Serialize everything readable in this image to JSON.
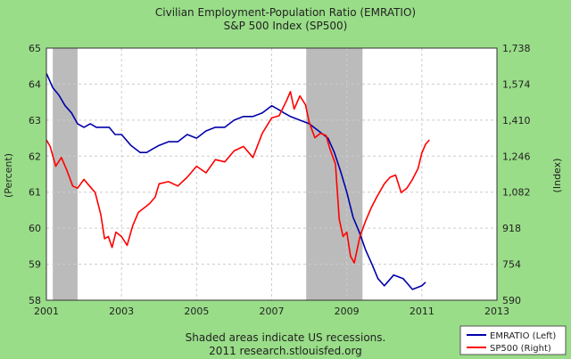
{
  "chart_data": {
    "type": "line",
    "title": "Civilian Employment-Population Ratio (EMRATIO)",
    "subtitle": "S&P 500 Index (SP500)",
    "ylabel_left": "(Percent)",
    "ylabel_right": "(Index)",
    "x_ticks": [
      "2001",
      "2003",
      "2005",
      "2007",
      "2009",
      "2011",
      "2013"
    ],
    "y_left_ticks": [
      "58",
      "59",
      "60",
      "61",
      "62",
      "63",
      "64",
      "65"
    ],
    "y_right_ticks": [
      "590",
      "754",
      "918",
      "1,082",
      "1,246",
      "1,410",
      "1,574",
      "1,738"
    ],
    "xlim": [
      2001.0,
      2013.0
    ],
    "ylim_left": [
      58,
      65
    ],
    "ylim_right": [
      590,
      1738
    ],
    "grid": true,
    "recessions": [
      [
        2001.17,
        2001.83
      ],
      [
        2007.92,
        2009.42
      ]
    ],
    "note_line1": "Shaded areas indicate US recessions.",
    "note_line2": "2011 research.stlouisfed.org",
    "series": [
      {
        "name": "EMRATIO (Left)",
        "axis": "left",
        "color": "#0000aa",
        "x": [
          2001.0,
          2001.17,
          2001.33,
          2001.5,
          2001.67,
          2001.83,
          2002.0,
          2002.17,
          2002.33,
          2002.5,
          2002.67,
          2002.83,
          2003.0,
          2003.25,
          2003.5,
          2003.67,
          2003.83,
          2004.0,
          2004.25,
          2004.5,
          2004.75,
          2005.0,
          2005.25,
          2005.5,
          2005.75,
          2006.0,
          2006.25,
          2006.5,
          2006.75,
          2007.0,
          2007.17,
          2007.33,
          2007.5,
          2007.75,
          2008.0,
          2008.25,
          2008.5,
          2008.67,
          2008.83,
          2009.0,
          2009.17,
          2009.33,
          2009.5,
          2009.67,
          2009.83,
          2010.0,
          2010.25,
          2010.5,
          2010.75,
          2011.0,
          2011.1
        ],
        "values": [
          64.3,
          63.9,
          63.7,
          63.4,
          63.2,
          62.9,
          62.8,
          62.9,
          62.8,
          62.8,
          62.8,
          62.6,
          62.6,
          62.3,
          62.1,
          62.1,
          62.2,
          62.3,
          62.4,
          62.4,
          62.6,
          62.5,
          62.7,
          62.8,
          62.8,
          63.0,
          63.1,
          63.1,
          63.2,
          63.4,
          63.3,
          63.2,
          63.1,
          63.0,
          62.9,
          62.7,
          62.5,
          62.1,
          61.6,
          61.0,
          60.3,
          59.9,
          59.4,
          59.0,
          58.6,
          58.4,
          58.7,
          58.6,
          58.3,
          58.4,
          58.5
        ]
      },
      {
        "name": "SP500 (Right)",
        "axis": "right",
        "color": "#ff0000",
        "x": [
          2001.0,
          2001.1,
          2001.25,
          2001.4,
          2001.55,
          2001.7,
          2001.83,
          2002.0,
          2002.15,
          2002.3,
          2002.45,
          2002.55,
          2002.65,
          2002.75,
          2002.85,
          2003.0,
          2003.15,
          2003.3,
          2003.45,
          2003.6,
          2003.75,
          2003.9,
          2004.0,
          2004.25,
          2004.5,
          2004.75,
          2005.0,
          2005.25,
          2005.5,
          2005.75,
          2006.0,
          2006.25,
          2006.5,
          2006.75,
          2007.0,
          2007.2,
          2007.4,
          2007.5,
          2007.6,
          2007.75,
          2007.9,
          2008.0,
          2008.15,
          2008.3,
          2008.45,
          2008.55,
          2008.7,
          2008.8,
          2008.9,
          2009.0,
          2009.1,
          2009.2,
          2009.35,
          2009.5,
          2009.65,
          2009.8,
          2010.0,
          2010.15,
          2010.3,
          2010.45,
          2010.6,
          2010.75,
          2010.9,
          2011.0,
          2011.1,
          2011.2
        ],
        "values": [
          1320,
          1290,
          1200,
          1240,
          1180,
          1110,
          1100,
          1140,
          1110,
          1080,
          980,
          870,
          880,
          830,
          900,
          880,
          840,
          930,
          990,
          1010,
          1030,
          1060,
          1120,
          1130,
          1110,
          1150,
          1200,
          1170,
          1230,
          1220,
          1270,
          1290,
          1240,
          1350,
          1420,
          1430,
          1500,
          1540,
          1460,
          1520,
          1480,
          1400,
          1330,
          1350,
          1340,
          1280,
          1210,
          960,
          880,
          900,
          790,
          760,
          880,
          950,
          1010,
          1060,
          1120,
          1150,
          1160,
          1080,
          1100,
          1140,
          1190,
          1260,
          1300,
          1320
        ]
      }
    ]
  }
}
